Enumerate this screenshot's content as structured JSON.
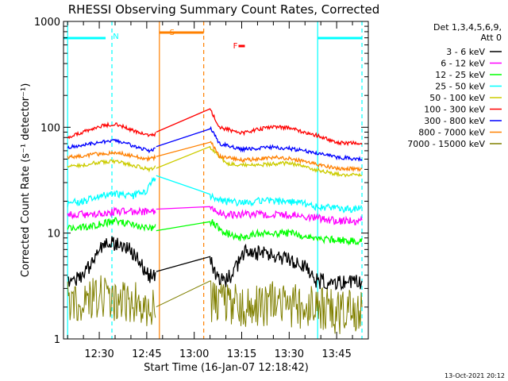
{
  "chart_data": {
    "type": "line",
    "title": "RHESSI Observing Summary Count Rates, Corrected",
    "xlabel": "Start Time (16-Jan-07 12:18:42)",
    "ylabel": "Corrected Count Rate (s⁻¹ detector⁻¹)",
    "y_scale": "log",
    "ylim": [
      1,
      1000
    ],
    "y_ticks": [
      1,
      10,
      100,
      1000
    ],
    "y_tick_labels": [
      "1",
      "10",
      "100",
      "1000"
    ],
    "xlim": [
      "12:18:42",
      "13:55:00"
    ],
    "x_ticks": [
      "12:30",
      "12:45",
      "13:00",
      "13:15",
      "13:30",
      "13:45"
    ],
    "grid": false,
    "legend_position": "right",
    "legend_header": [
      "Det 1,3,4,5,6,9,",
      "Att 0"
    ],
    "series": [
      {
        "name": "3 - 6 keV",
        "color": "#000000",
        "x": [
          "12:20",
          "12:24",
          "12:27",
          "12:30",
          "12:33",
          "12:36",
          "12:40",
          "12:43",
          "12:46",
          "13:05",
          "13:07",
          "13:10",
          "13:13",
          "13:16",
          "13:20",
          "13:25",
          "13:30",
          "13:35",
          "13:38",
          "13:42",
          "13:46",
          "13:50",
          "13:53"
        ],
        "y": [
          3.5,
          3.8,
          5.0,
          7.0,
          8.0,
          8.2,
          7.0,
          5.0,
          4.0,
          6.0,
          4.0,
          3.5,
          4.5,
          7.0,
          6.5,
          6.0,
          5.5,
          5.0,
          3.5,
          3.5,
          3.5,
          3.5,
          3.5
        ]
      },
      {
        "name": "6 - 12 keV",
        "color": "#ff00ff",
        "x": [
          "12:20",
          "12:30",
          "12:35",
          "12:40",
          "12:46",
          "13:05",
          "13:10",
          "13:15",
          "13:20",
          "13:30",
          "13:38",
          "13:45",
          "13:53"
        ],
        "y": [
          15,
          15,
          16,
          16,
          16,
          17,
          15,
          15,
          15,
          15,
          14,
          13,
          13
        ]
      },
      {
        "name": "12 - 25 keV",
        "color": "#00ff00",
        "x": [
          "12:20",
          "12:30",
          "12:35",
          "12:40",
          "12:46",
          "13:05",
          "13:10",
          "13:15",
          "13:20",
          "13:30",
          "13:38",
          "13:45",
          "13:53"
        ],
        "y": [
          11,
          12,
          13,
          12,
          11,
          13,
          10,
          9,
          10,
          10,
          9,
          8.5,
          8.5
        ]
      },
      {
        "name": "25 - 50 keV",
        "color": "#00ffff",
        "x": [
          "12:20",
          "12:25",
          "12:30",
          "12:35",
          "12:40",
          "12:45",
          "12:48",
          "13:05",
          "13:10",
          "13:15",
          "13:20",
          "13:30",
          "13:38",
          "13:45",
          "13:53"
        ],
        "y": [
          19,
          20,
          22,
          24,
          22,
          25,
          35,
          22,
          20,
          19,
          20,
          20,
          18,
          17,
          17
        ]
      },
      {
        "name": "50 - 100 keV",
        "color": "#cccc00",
        "x": [
          "12:20",
          "12:25",
          "12:30",
          "12:35",
          "12:40",
          "12:46",
          "13:05",
          "13:10",
          "13:15",
          "13:20",
          "13:30",
          "13:38",
          "13:45",
          "13:53"
        ],
        "y": [
          42,
          44,
          47,
          48,
          44,
          40,
          65,
          46,
          44,
          44,
          46,
          40,
          36,
          35
        ]
      },
      {
        "name": "100 - 300 keV",
        "color": "#ff0000",
        "x": [
          "12:20",
          "12:25",
          "12:30",
          "12:35",
          "12:40",
          "12:46",
          "13:05",
          "13:08",
          "13:15",
          "13:20",
          "13:25",
          "13:30",
          "13:38",
          "13:45",
          "13:53"
        ],
        "y": [
          80,
          90,
          102,
          108,
          95,
          82,
          150,
          100,
          88,
          95,
          102,
          98,
          85,
          72,
          70
        ]
      },
      {
        "name": "300 - 800 keV",
        "color": "#0000ff",
        "x": [
          "12:20",
          "12:25",
          "12:30",
          "12:35",
          "12:40",
          "12:46",
          "13:05",
          "13:08",
          "13:15",
          "13:20",
          "13:25",
          "13:30",
          "13:38",
          "13:45",
          "13:53"
        ],
        "y": [
          65,
          68,
          72,
          74,
          68,
          60,
          100,
          70,
          62,
          63,
          65,
          63,
          58,
          52,
          50
        ]
      },
      {
        "name": "800 - 7000 keV",
        "color": "#ff8000",
        "x": [
          "12:20",
          "12:25",
          "12:30",
          "12:35",
          "12:40",
          "12:46",
          "13:05",
          "13:08",
          "13:15",
          "13:20",
          "13:25",
          "13:30",
          "13:38",
          "13:45",
          "13:53"
        ],
        "y": [
          52,
          54,
          56,
          58,
          54,
          50,
          75,
          53,
          49,
          50,
          52,
          51,
          45,
          41,
          40
        ]
      },
      {
        "name": "7000 - 15000 keV",
        "color": "#808000",
        "x": [
          "12:20",
          "12:30",
          "12:40",
          "12:46",
          "13:05",
          "13:15",
          "13:25",
          "13:35",
          "13:45",
          "13:53"
        ],
        "y": [
          2.2,
          2.5,
          2.3,
          2.0,
          2.3,
          2.0,
          2.2,
          2.0,
          1.8,
          1.8
        ]
      }
    ],
    "annotations": [
      {
        "label": "N",
        "color": "#00ffff",
        "time": "12:34"
      },
      {
        "label": "S",
        "color": "#ff8000",
        "time": "12:53"
      },
      {
        "label": "F",
        "color": "#ff0000",
        "time": "13:13"
      }
    ],
    "vertical_lines": [
      {
        "time": "12:20",
        "color": "#00ffff",
        "style": "solid"
      },
      {
        "time": "12:34",
        "color": "#00ffff",
        "style": "dashed"
      },
      {
        "time": "12:49",
        "color": "#ff8000",
        "style": "solid"
      },
      {
        "time": "13:03",
        "color": "#ff8000",
        "style": "dashed"
      },
      {
        "time": "13:39",
        "color": "#00ffff",
        "style": "solid"
      },
      {
        "time": "13:53",
        "color": "#00ffff",
        "style": "dashed"
      }
    ],
    "bars": [
      {
        "label": "N",
        "color": "#00ffff",
        "from": "12:18:42",
        "to": "12:32"
      },
      {
        "label": "N",
        "color": "#00ffff",
        "from": "13:39",
        "to": "13:53"
      },
      {
        "label": "S",
        "color": "#ff8000",
        "from": "12:49",
        "to": "13:03"
      },
      {
        "label": "F",
        "color": "#ff0000",
        "from": "13:14",
        "to": "13:16"
      }
    ],
    "gaps": [
      {
        "from": "12:48",
        "to": "13:05"
      }
    ],
    "footer": "13-Oct-2021 20:12"
  }
}
